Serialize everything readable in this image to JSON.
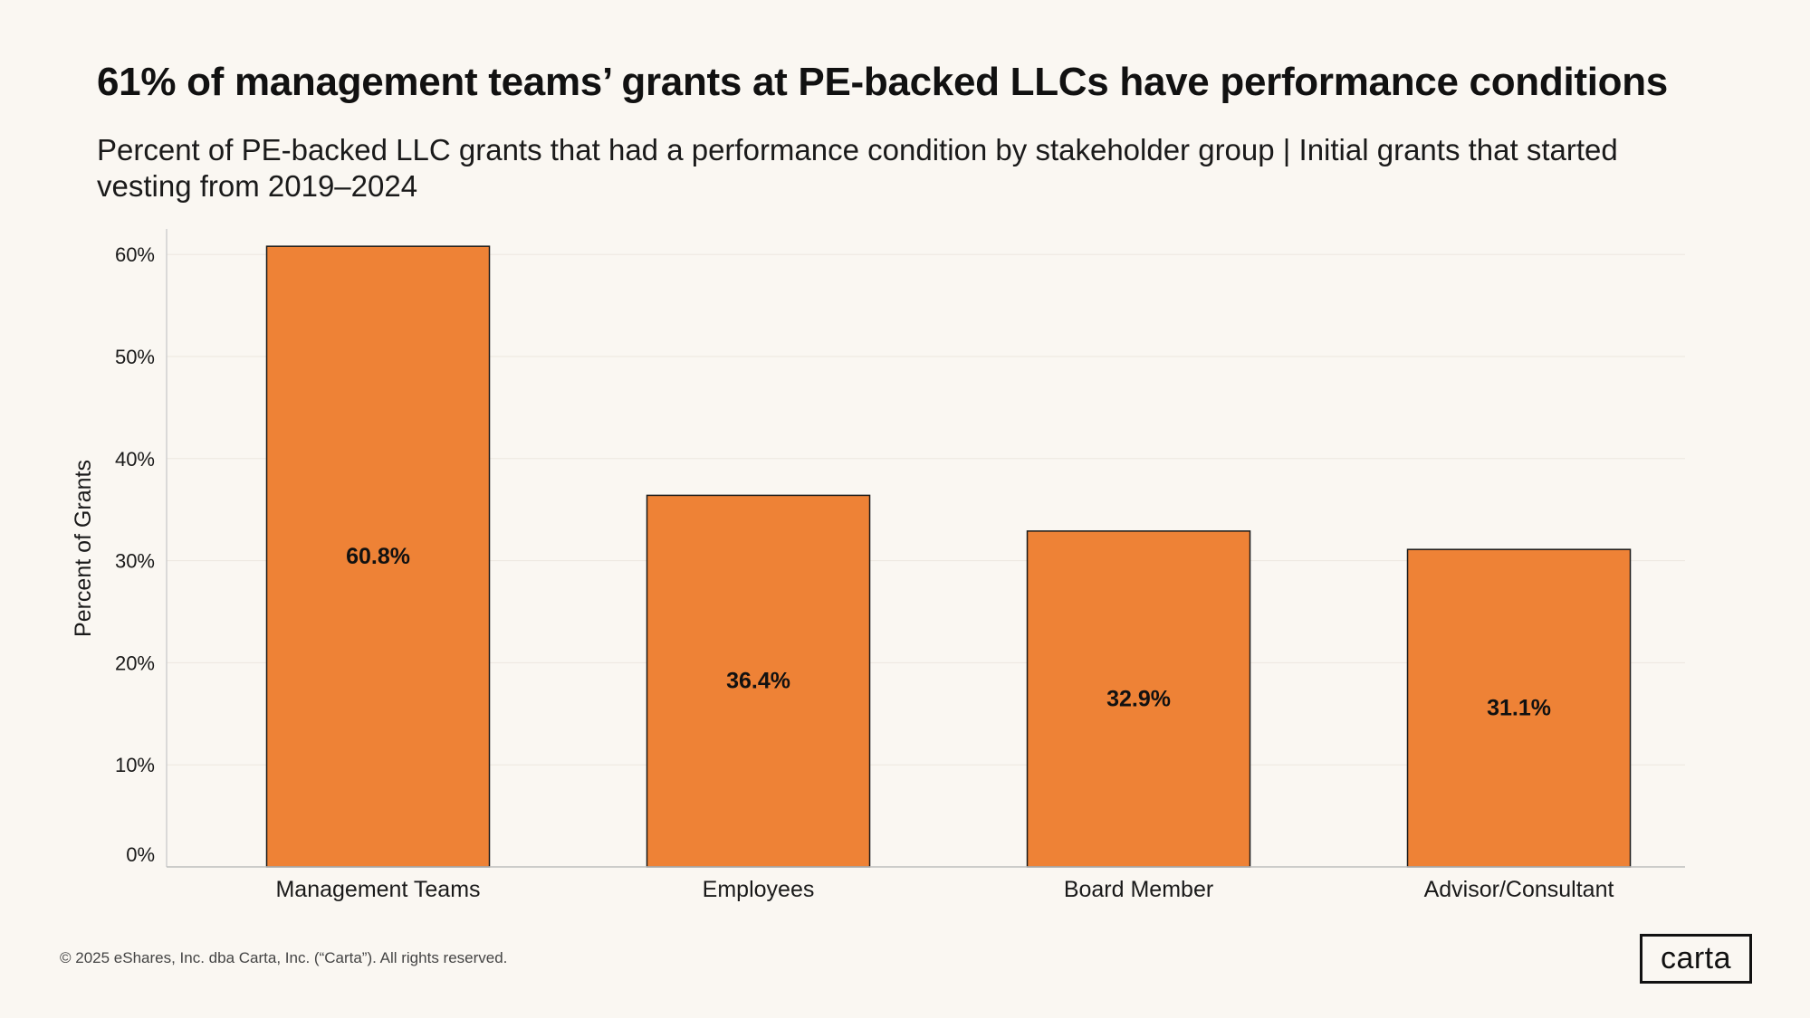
{
  "header": {
    "title": "61% of management teams’ grants at PE-backed LLCs have performance conditions",
    "subtitle": "Percent of PE-backed LLC grants that had a performance condition by stakeholder group | Initial grants that started vesting from 2019–2024"
  },
  "chart_data": {
    "type": "bar",
    "categories": [
      "Management Teams",
      "Employees",
      "Board Member",
      "Advisor/Consultant"
    ],
    "values": [
      60.8,
      36.4,
      32.9,
      31.1
    ],
    "value_labels": [
      "60.8%",
      "36.4%",
      "32.9%",
      "31.1%"
    ],
    "ylabel": "Percent of Grants",
    "ylim": [
      0,
      62.5
    ],
    "yticks": [
      0,
      10,
      20,
      30,
      40,
      50,
      60
    ],
    "ytick_labels": [
      "0%",
      "10%",
      "20%",
      "30%",
      "40%",
      "50%",
      "60%"
    ],
    "grid": true,
    "bar_color": "#ee8236"
  },
  "footer": {
    "copyright": "© 2025 eShares, Inc. dba Carta, Inc. (“Carta”). All rights reserved.",
    "logo": "carta"
  }
}
